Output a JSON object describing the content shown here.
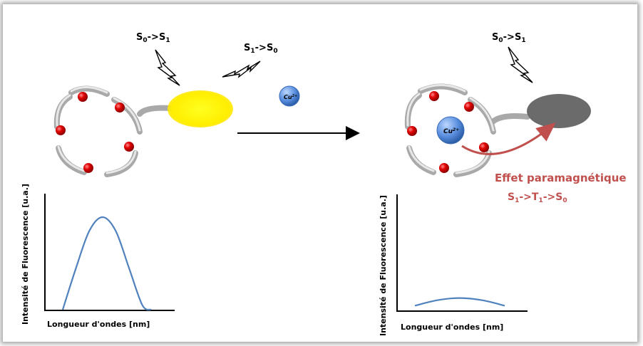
{
  "left_panel": {
    "label_excitation": {
      "main": "S",
      "sub0": "0",
      "arrow": "->",
      "main2": "S",
      "sub1": "1"
    },
    "label_emission": {
      "main": "S",
      "sub0": "1",
      "arrow": "->",
      "main2": "S",
      "sub1": "0"
    },
    "fluorophore_color": "#ffff00",
    "graph": {
      "ylabel": "Intensité de Fluorescence [u.a.]",
      "xlabel": "Longueur d'ondes [nm]"
    }
  },
  "ion": {
    "text": "Cu",
    "charge": "2+",
    "color": "#4a86d8"
  },
  "right_panel": {
    "label_excitation": {
      "main": "S",
      "sub0": "0",
      "arrow": "->",
      "main2": "S",
      "sub1": "1"
    },
    "effect_title": "Effet paramagnétique",
    "effect_path": {
      "s": "S",
      "sub1": "1",
      "arrow1": "->",
      "t": "T",
      "sub2": "1",
      "arrow2": "->",
      "s2": "S",
      "sub3": "0"
    },
    "quencher_color": "#6b6b6b",
    "effect_color": "#c0504d",
    "graph": {
      "ylabel": "Intensité de Fluorescence [u.a.]",
      "xlabel": "Longueur d'ondes [nm]"
    }
  },
  "chart_data": [
    {
      "type": "line",
      "name": "left",
      "x": [
        0,
        0.15,
        0.3,
        0.45,
        0.6,
        0.75,
        0.9,
        1.0
      ],
      "y": [
        0,
        0.45,
        0.85,
        1.0,
        0.85,
        0.45,
        0.05,
        0
      ]
    },
    {
      "type": "line",
      "name": "right",
      "x": [
        0,
        0.25,
        0.5,
        0.75,
        1.0
      ],
      "y": [
        0.05,
        0.1,
        0.12,
        0.1,
        0.05
      ]
    }
  ]
}
